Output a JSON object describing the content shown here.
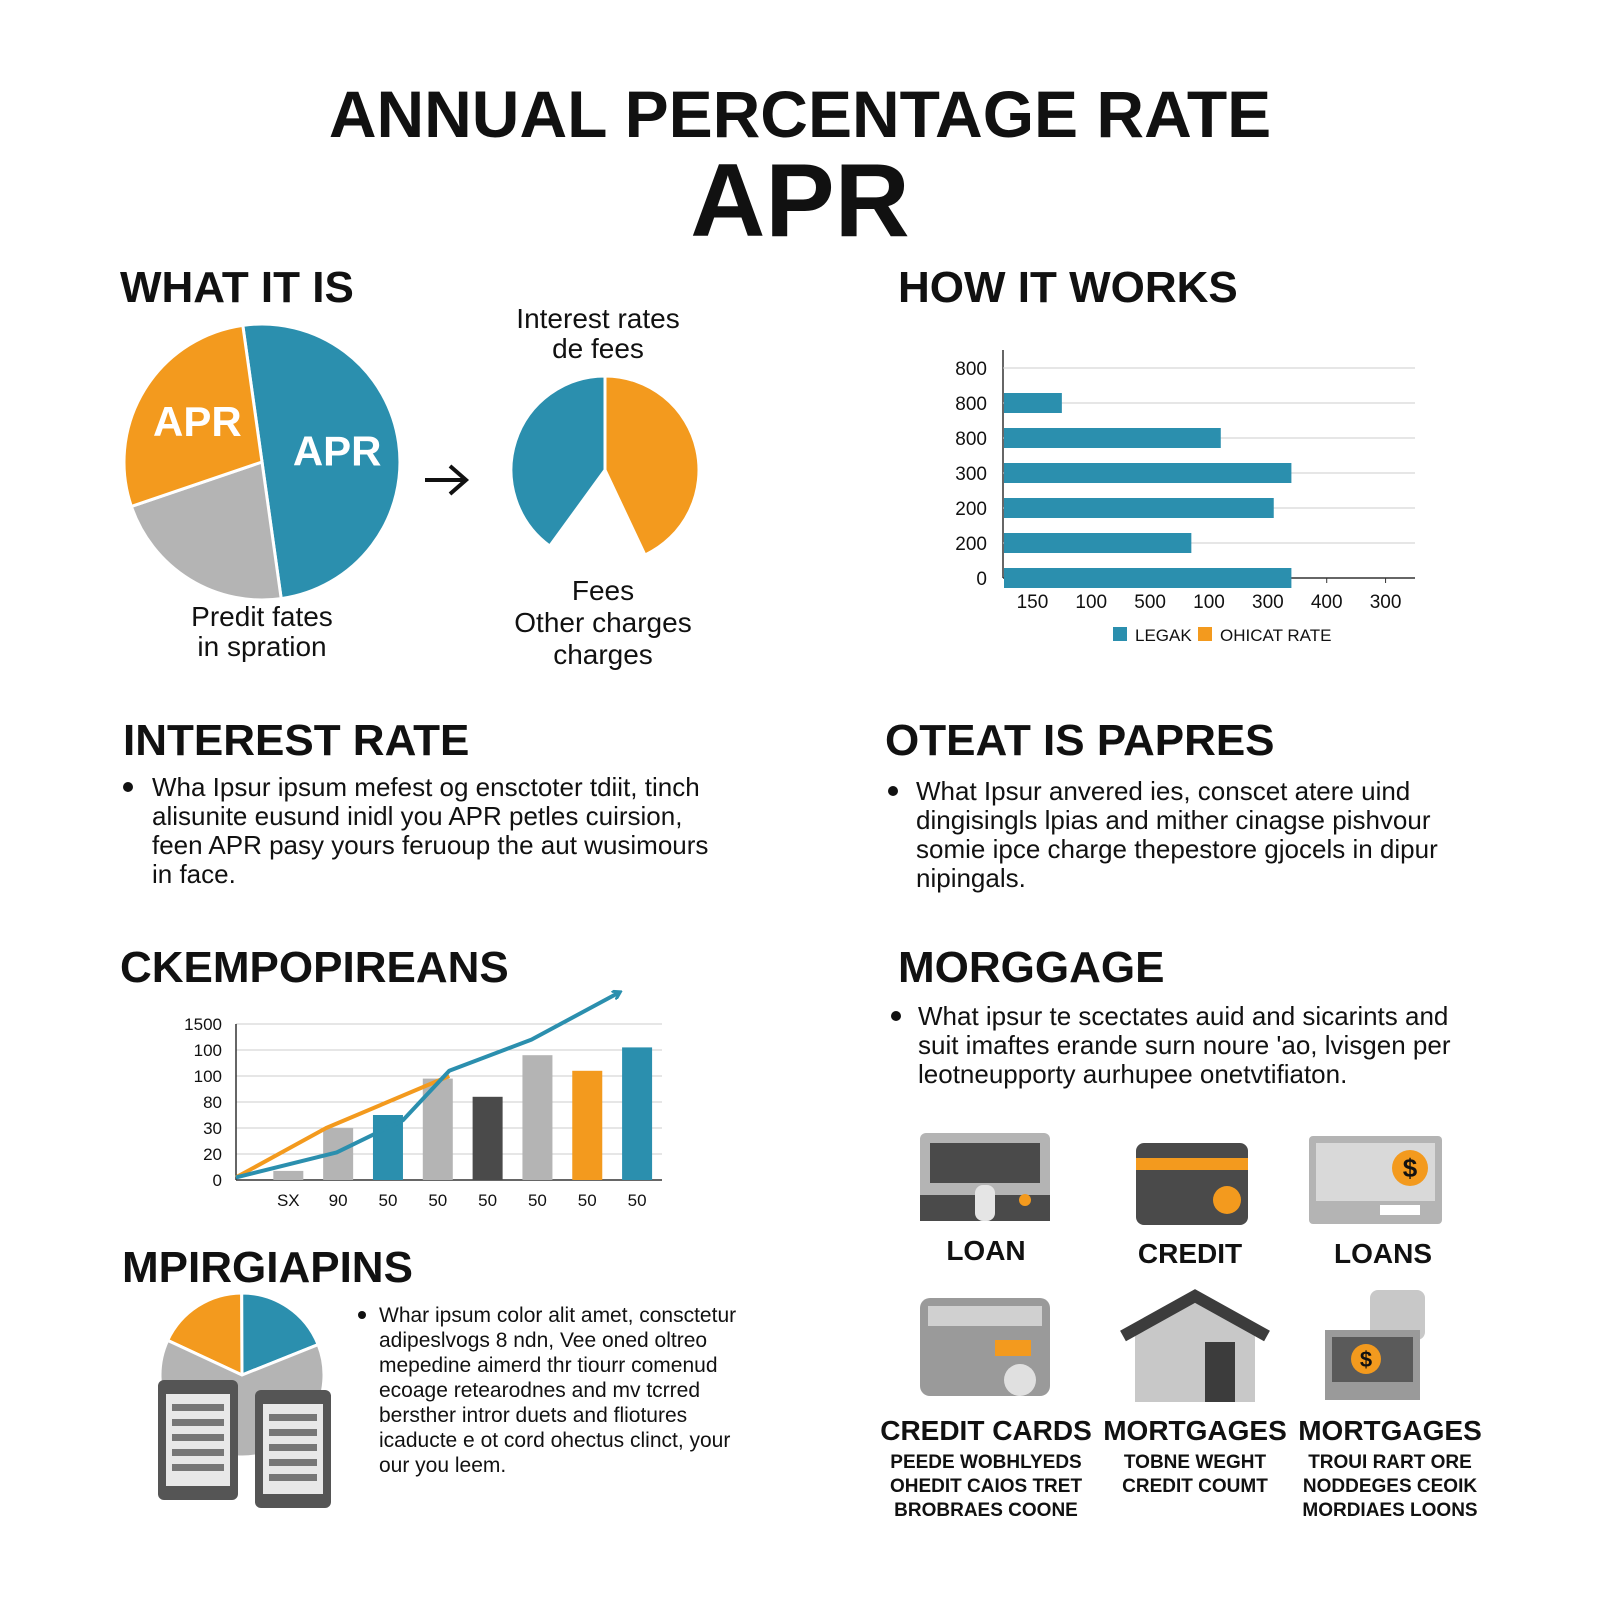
{
  "title": "ANNUAL PERCENTAGE RATE",
  "subtitle": "APR",
  "sections": {
    "what_it_is": {
      "heading": "WHAT IT IS",
      "caption_left": [
        "Predit fates",
        "in spration"
      ],
      "caption_top": [
        "Interest rates",
        "de fees"
      ],
      "caption_bottom": [
        "Fees",
        "Other charges",
        "charges"
      ]
    },
    "how_it_works": {
      "heading": "HOW IT WORKS"
    },
    "interest_rate": {
      "heading": "INTEREST RATE",
      "bullet": [
        "Wha Ipsur ipsum mefest og ensctoter tdiit, tinch",
        "alisunite eusund inidl you APR petles cuirsion,",
        "feen APR pasy yours feruoup the aut wusimours",
        "in face."
      ]
    },
    "oteat": {
      "heading": "OTEAT IS PAPRES",
      "bullet": [
        "What Ipsur anvered ies, conscet atere uind",
        "dingisingls lpias and mither cinagse pishvour",
        "somie ipce charge thepestore gjocels in dipur",
        "nipingals."
      ]
    },
    "ckempo": {
      "heading": "CKEMPOPIREANS"
    },
    "morggage": {
      "heading": "MORGGAGE",
      "bullet": [
        "What ipsur te scectates auid and sicarints and",
        "suit imaftes erande surn noure 'ao, lvisgen per",
        "leotneupporty aurhupee onetvtifiaton."
      ]
    },
    "mpirg": {
      "heading": "MPIRGIAPINS",
      "bullet": [
        "Whar ipsum color alit amet, consctetur",
        "adipeslvogs 8 ndn, Vee oned oltreo",
        "mepedine aimerd thr tiourr comenud",
        "ecoage retearodnes and mv tcrred",
        "bersther intror duets and fliotures",
        "icaducte e ot cord ohectus clinct, your",
        "our you leem."
      ]
    }
  },
  "products": [
    {
      "label": "LOAN"
    },
    {
      "label": "CREDIT"
    },
    {
      "label": "LOANS"
    },
    {
      "label": "CREDIT CARDS",
      "details": [
        "PEEDE WOBHLYEDS",
        "OHEDIT CAIOS TRET",
        "BROBRAES COONE"
      ]
    },
    {
      "label": "MORTGAGES",
      "details": [
        "TOBNE WEGHT",
        "CREDIT COUMT"
      ]
    },
    {
      "label": "MORTGAGES",
      "details": [
        "TROUI RART ORE",
        "NODDEGES CEOIK",
        "MORDIAES LOONS"
      ]
    }
  ],
  "chart_data": [
    {
      "type": "pie",
      "labels": [
        "APR",
        null,
        "APR"
      ],
      "values": [
        50,
        22,
        28
      ],
      "colors": [
        "#2b8fae",
        "#b4b4b4",
        "#f39a1e"
      ]
    },
    {
      "type": "pie",
      "values": [
        43,
        40
      ],
      "colors": [
        "#f39a1e",
        "#2b8fae"
      ]
    },
    {
      "type": "hbar",
      "categories": [
        "800",
        "800",
        "800",
        "300",
        "200",
        "200",
        "0"
      ],
      "series": [
        {
          "name": "LEGAK",
          "color": "#2b8fae",
          "values": [
            null,
            1.0,
            3.7,
            4.9,
            4.6,
            3.2,
            4.9
          ]
        },
        {
          "name": "OHICAT RATE",
          "color": "#f39a1e",
          "values": [
            null,
            null,
            null,
            null,
            null,
            null,
            null
          ]
        }
      ],
      "xlim": [
        0,
        7
      ],
      "xticks": [
        {
          "value": 0.5,
          "label": "150"
        },
        {
          "value": 1.5,
          "label": "100"
        },
        {
          "value": 2.5,
          "label": "500"
        },
        {
          "value": 3.5,
          "label": "100"
        },
        {
          "value": 4.5,
          "label": "300"
        },
        {
          "value": 5.5,
          "label": "400"
        },
        {
          "value": 6.5,
          "label": "300"
        }
      ],
      "grid": true
    },
    {
      "type": "combo",
      "categories": [
        "SX",
        "90",
        "50",
        "50",
        "50",
        "50",
        "50",
        "50"
      ],
      "values": [
        0.35,
        2.0,
        2.5,
        3.9,
        3.2,
        4.8,
        4.2,
        5.1
      ],
      "colors": [
        "#b4b4b4",
        "#b4b4b4",
        "#2b8fae",
        "#b4b4b4",
        "#4a4a4a",
        "#b4b4b4",
        "#f39a1e",
        "#2b8fae"
      ],
      "lines": [
        {
          "color": "#f39a1e",
          "x": [
            -1.05,
            0.76,
            3.23
          ],
          "values": [
            0.1,
            2.0,
            4.0
          ]
        },
        {
          "color": "#2b8fae",
          "x": [
            -1.05,
            0.97,
            2.3,
            3.23,
            4.88,
            6.63
          ],
          "values": [
            0.1,
            1.06,
            2.3,
            4.2,
            5.4,
            7.2
          ]
        }
      ],
      "xlim": [
        -1.05,
        7.5
      ],
      "ylim": [
        0,
        6
      ],
      "yticks": [
        0,
        {
          "value": 1,
          "label": "20"
        },
        {
          "value": 2,
          "label": "30"
        },
        {
          "value": 3,
          "label": "80"
        },
        {
          "value": 4,
          "label": "100"
        },
        {
          "value": 5,
          "label": "100"
        },
        {
          "value": 6,
          "label": "1500"
        }
      ],
      "grid": true
    },
    {
      "type": "pie",
      "values": [
        18,
        19,
        63
      ],
      "colors": [
        "#f39a1e",
        "#2b8fae",
        "#b4b4b4"
      ]
    }
  ]
}
